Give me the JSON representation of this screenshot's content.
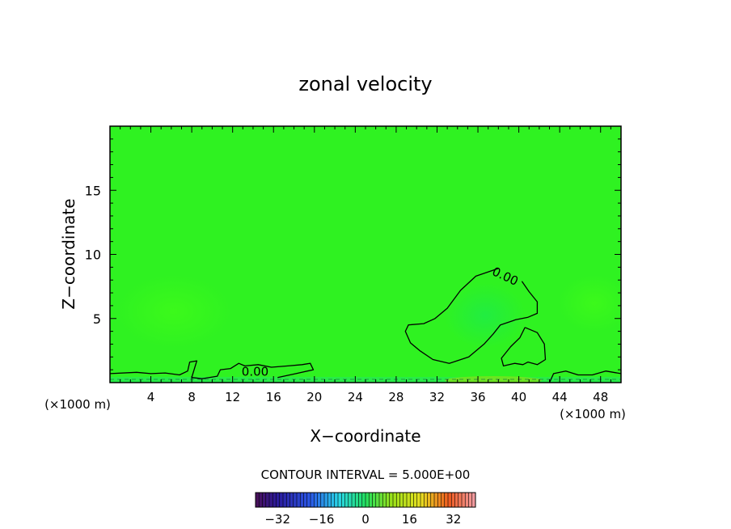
{
  "chart_data": {
    "type": "heatmap",
    "title": "zonal velocity",
    "xlabel": "X−coordinate",
    "ylabel": "Z−coordinate",
    "x_unit_left": "(×1000 m)",
    "x_unit_right": "(×1000 m)",
    "xlim": [
      0,
      50
    ],
    "ylim": [
      0,
      20
    ],
    "xticks": [
      4,
      8,
      12,
      16,
      20,
      24,
      28,
      32,
      36,
      40,
      44,
      48
    ],
    "yticks": [
      5,
      10,
      15
    ],
    "field_color": "#2ff221",
    "contours": [
      {
        "label": "0.00",
        "label_at": [
          38.5,
          8.0
        ],
        "label_angle": 25,
        "points": [
          [
            38.0,
            8.9
          ],
          [
            35.8,
            8.3
          ],
          [
            34.3,
            7.2
          ],
          [
            33.0,
            5.8
          ],
          [
            31.8,
            5.0
          ],
          [
            30.7,
            4.6
          ],
          [
            29.2,
            4.5
          ],
          [
            28.9,
            4.0
          ],
          [
            29.4,
            3.1
          ],
          [
            30.3,
            2.5
          ],
          [
            31.6,
            1.8
          ],
          [
            33.2,
            1.5
          ],
          [
            35.1,
            2.0
          ],
          [
            36.6,
            3.0
          ],
          [
            37.5,
            3.8
          ],
          [
            38.2,
            4.5
          ],
          [
            39.7,
            4.9
          ],
          [
            40.9,
            5.1
          ],
          [
            41.8,
            5.4
          ],
          [
            41.8,
            6.3
          ],
          [
            41.0,
            7.1
          ],
          [
            40.3,
            7.9
          ]
        ]
      },
      {
        "label": "",
        "points": [
          [
            40.6,
            4.3
          ],
          [
            41.8,
            3.9
          ],
          [
            42.5,
            3.0
          ],
          [
            42.6,
            1.8
          ],
          [
            41.8,
            1.4
          ],
          [
            40.9,
            1.6
          ],
          [
            40.4,
            1.4
          ],
          [
            39.6,
            1.5
          ],
          [
            38.5,
            1.3
          ],
          [
            38.3,
            1.9
          ],
          [
            39.2,
            2.8
          ],
          [
            40.1,
            3.5
          ],
          [
            40.6,
            4.3
          ]
        ]
      },
      {
        "label": "0.00",
        "label_at": [
          14.2,
          0.55
        ],
        "label_angle": 0,
        "points": [
          [
            0.0,
            0.7
          ],
          [
            2.6,
            0.8
          ],
          [
            4.0,
            0.7
          ],
          [
            5.4,
            0.75
          ],
          [
            6.8,
            0.6
          ],
          [
            7.6,
            0.9
          ],
          [
            7.8,
            1.6
          ],
          [
            8.5,
            1.7
          ],
          [
            8.0,
            0.4
          ],
          [
            9.0,
            0.3
          ],
          [
            10.5,
            0.5
          ],
          [
            10.8,
            1.0
          ],
          [
            11.8,
            1.1
          ],
          [
            12.6,
            1.5
          ],
          [
            13.2,
            1.3
          ],
          [
            14.5,
            1.4
          ],
          [
            15.8,
            1.2
          ],
          [
            17.4,
            1.3
          ],
          [
            18.8,
            1.4
          ],
          [
            19.6,
            1.5
          ],
          [
            19.9,
            1.0
          ],
          [
            18.2,
            0.7
          ],
          [
            16.4,
            0.4
          ]
        ]
      },
      {
        "label": "",
        "points": [
          [
            43.0,
            0.0
          ],
          [
            43.4,
            0.7
          ],
          [
            44.6,
            0.9
          ],
          [
            45.8,
            0.6
          ],
          [
            47.2,
            0.6
          ],
          [
            48.5,
            0.9
          ],
          [
            50.0,
            0.7
          ]
        ]
      }
    ],
    "colorbar": {
      "ticks": [
        -32,
        -16,
        0,
        16,
        32
      ],
      "range": [
        -40,
        40
      ],
      "interval": 5
    },
    "contour_interval_text": "CONTOUR INTERVAL = 5.000E+00"
  }
}
